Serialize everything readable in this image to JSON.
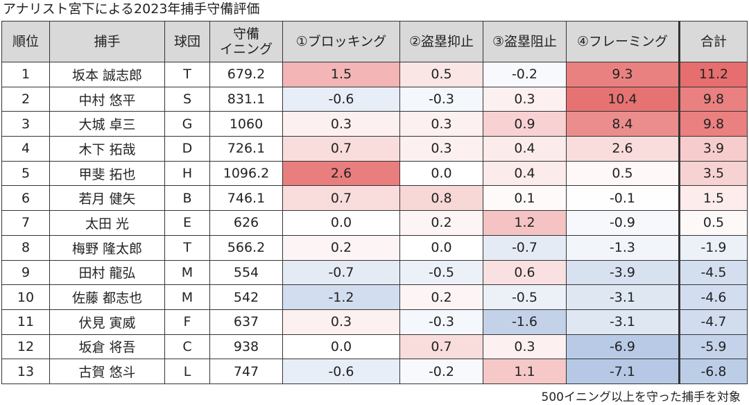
{
  "title": "アナリスト宮下による2023年捕手守備評価",
  "header": {
    "rank": "順位",
    "catcher": "捕手",
    "team": "球団",
    "innings_line1": "守備",
    "innings_line2": "イニング",
    "blocking": "①ブロッキング",
    "steal_deterrence": "②盗塁抑止",
    "steal_prevention": "③盗塁阻止",
    "framing": "④フレーミング",
    "total": "合計"
  },
  "rows": [
    {
      "rank": "1",
      "name": "坂本 誠志郎",
      "team": "T",
      "innings": "679.2",
      "blocking": "1.5",
      "deterrence": "0.5",
      "prevention": "-0.2",
      "framing": "9.3",
      "total": "11.2"
    },
    {
      "rank": "2",
      "name": "中村 悠平",
      "team": "S",
      "innings": "831.1",
      "blocking": "-0.6",
      "deterrence": "-0.3",
      "prevention": "0.3",
      "framing": "10.4",
      "total": "9.8"
    },
    {
      "rank": "3",
      "name": "大城 卓三",
      "team": "G",
      "innings": "1060",
      "blocking": "0.3",
      "deterrence": "0.3",
      "prevention": "0.9",
      "framing": "8.4",
      "total": "9.8"
    },
    {
      "rank": "4",
      "name": "木下 拓哉",
      "team": "D",
      "innings": "726.1",
      "blocking": "0.7",
      "deterrence": "0.3",
      "prevention": "0.4",
      "framing": "2.6",
      "total": "3.9"
    },
    {
      "rank": "5",
      "name": "甲斐 拓也",
      "team": "H",
      "innings": "1096.2",
      "blocking": "2.6",
      "deterrence": "0.0",
      "prevention": "0.4",
      "framing": "0.5",
      "total": "3.5"
    },
    {
      "rank": "6",
      "name": "若月 健矢",
      "team": "B",
      "innings": "746.1",
      "blocking": "0.7",
      "deterrence": "0.8",
      "prevention": "0.1",
      "framing": "-0.1",
      "total": "1.5"
    },
    {
      "rank": "7",
      "name": "太田 光",
      "team": "E",
      "innings": "626",
      "blocking": "0.0",
      "deterrence": "0.2",
      "prevention": "1.2",
      "framing": "-0.9",
      "total": "0.5"
    },
    {
      "rank": "8",
      "name": "梅野 隆太郎",
      "team": "T",
      "innings": "566.2",
      "blocking": "0.2",
      "deterrence": "0.0",
      "prevention": "-0.7",
      "framing": "-1.3",
      "total": "-1.9"
    },
    {
      "rank": "9",
      "name": "田村 龍弘",
      "team": "M",
      "innings": "554",
      "blocking": "-0.7",
      "deterrence": "-0.5",
      "prevention": "0.6",
      "framing": "-3.9",
      "total": "-4.5"
    },
    {
      "rank": "10",
      "name": "佐藤 都志也",
      "team": "M",
      "innings": "542",
      "blocking": "-1.2",
      "deterrence": "0.2",
      "prevention": "-0.5",
      "framing": "-3.1",
      "total": "-4.6"
    },
    {
      "rank": "11",
      "name": "伏見 寅威",
      "team": "F",
      "innings": "637",
      "blocking": "0.3",
      "deterrence": "-0.3",
      "prevention": "-1.6",
      "framing": "-3.1",
      "total": "-4.7"
    },
    {
      "rank": "12",
      "name": "坂倉 将吾",
      "team": "C",
      "innings": "938",
      "blocking": "0.0",
      "deterrence": "0.7",
      "prevention": "0.3",
      "framing": "-6.9",
      "total": "-5.9"
    },
    {
      "rank": "13",
      "name": "古賀 悠斗",
      "team": "L",
      "innings": "747",
      "blocking": "-0.6",
      "deterrence": "-0.2",
      "prevention": "1.1",
      "framing": "-7.1",
      "total": "-6.8"
    }
  ],
  "colors": {
    "header_bg": "#d9d9d9",
    "positive_max": "#e66a6a",
    "neutral": "#ffffff",
    "negative_max": "#8eaad6"
  },
  "footnote": "500イニング以上を守った捕手を対象"
}
